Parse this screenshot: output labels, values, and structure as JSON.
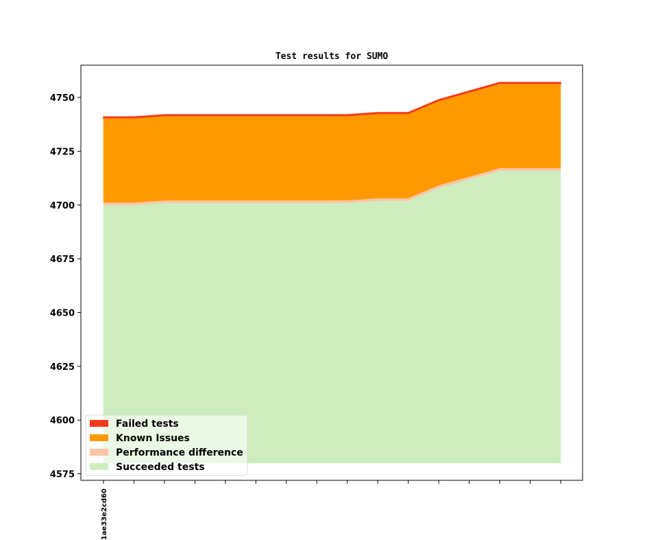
{
  "chart_data": {
    "type": "area",
    "stacked": true,
    "title": "Test results for SUMO",
    "xlabel": "",
    "ylabel": "",
    "categories": [
      "1ae33e2cd60",
      "",
      "",
      "",
      "",
      "",
      "",
      "",
      "",
      "",
      "",
      "",
      "",
      "",
      "",
      ""
    ],
    "ylim": [
      4572,
      4765
    ],
    "yticks": [
      4575,
      4600,
      4625,
      4650,
      4675,
      4700,
      4725,
      4750
    ],
    "baseline": 4580,
    "legend_position": "lower-left",
    "grid": false,
    "series": [
      {
        "name": "Succeeded tests",
        "color": "#cdedbf",
        "top": [
          4700,
          4700,
          4701,
          4701,
          4701,
          4701,
          4701,
          4701,
          4701,
          4702,
          4702,
          4708,
          4712,
          4716,
          4716,
          4716
        ]
      },
      {
        "name": "Performance difference",
        "color": "#fbc4a7",
        "top": [
          4701.2,
          4701.2,
          4702.2,
          4702.2,
          4702.2,
          4702.2,
          4702.2,
          4702.2,
          4702.2,
          4703.2,
          4703.2,
          4709.2,
          4713.2,
          4717.2,
          4717.2,
          4717.2
        ]
      },
      {
        "name": "Known Issues",
        "color": "#ff9900",
        "top": [
          4740.5,
          4740.5,
          4741.5,
          4741.5,
          4741.5,
          4741.5,
          4741.5,
          4741.5,
          4741.5,
          4742.5,
          4742.5,
          4748.5,
          4752.5,
          4756.5,
          4756.5,
          4756.5
        ]
      },
      {
        "name": "Failed tests",
        "color": "#f43a1c",
        "top": [
          4741,
          4741,
          4742,
          4742,
          4742,
          4742,
          4742,
          4742,
          4742,
          4743,
          4743,
          4749,
          4753,
          4757,
          4757,
          4757
        ]
      }
    ],
    "legend_order": [
      "Failed tests",
      "Known Issues",
      "Performance difference",
      "Succeeded tests"
    ]
  }
}
